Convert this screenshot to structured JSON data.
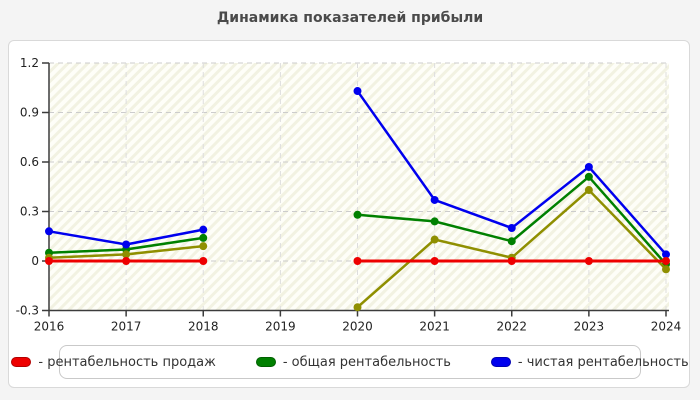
{
  "title": "Динамика показателей прибыли",
  "chart_data": {
    "type": "line",
    "x": [
      "2016",
      "2017",
      "2018",
      "2019",
      "2020",
      "2021",
      "2022",
      "2023",
      "2024"
    ],
    "series": [
      {
        "name": "рентабельность продаж",
        "legend_label": "- рентабельность продаж",
        "color": "#ee0000",
        "in_legend": true,
        "values": [
          0,
          0,
          0,
          null,
          0,
          0,
          0,
          0,
          0
        ]
      },
      {
        "name": "общая рентабельность",
        "legend_label": "- общая рентабельность",
        "color": "#008000",
        "in_legend": true,
        "values": [
          0.05,
          0.07,
          0.14,
          null,
          0.28,
          0.24,
          0.12,
          0.51,
          -0.02
        ]
      },
      {
        "name": "чистая рентабельность",
        "legend_label": "- чистая рентабельность",
        "color": "#0000ee",
        "in_legend": true,
        "values": [
          0.18,
          0.1,
          0.19,
          null,
          1.03,
          0.37,
          0.2,
          0.57,
          0.04
        ]
      },
      {
        "name": "",
        "legend_label": "",
        "color": "#8f8f00",
        "in_legend": false,
        "values": [
          0.02,
          0.04,
          0.09,
          null,
          -0.28,
          0.13,
          0.02,
          0.43,
          -0.05
        ]
      }
    ],
    "title": "Динамика показателей прибыли",
    "xlabel": "",
    "ylabel": "",
    "ylim": [
      -0.3,
      1.2
    ],
    "yticks": [
      -0.3,
      0,
      0.3,
      0.6,
      0.9,
      1.2
    ],
    "y_tick_labels": [
      "-0.3",
      "0",
      "0.3",
      "0.6",
      "0.9",
      "1.2"
    ],
    "grid": true,
    "legend_position": "bottom",
    "missing_x": [
      "2019"
    ]
  }
}
